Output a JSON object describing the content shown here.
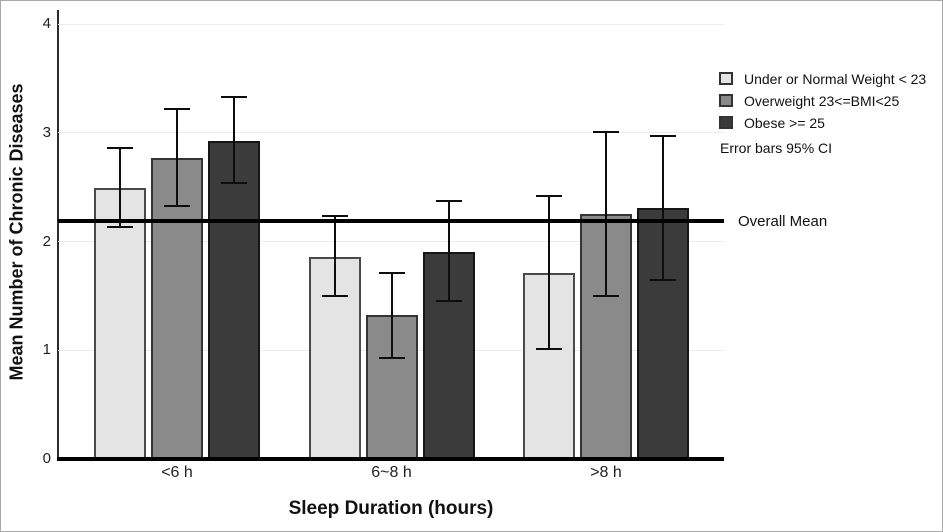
{
  "chart_data": {
    "type": "bar",
    "title": "",
    "xlabel": "Sleep Duration (hours)",
    "ylabel": "Mean Number of Chronic Diseases",
    "categories": [
      "<6 h",
      "6~8 h",
      ">8 h"
    ],
    "series": [
      {
        "name": "Under or Normal Weight < 23",
        "color": "#e4e4e4",
        "border_color": "#4a4a4a",
        "values": [
          2.49,
          1.86,
          1.71
        ],
        "ci_low": [
          2.12,
          1.49,
          1.0
        ],
        "ci_high": [
          2.87,
          2.24,
          2.43
        ]
      },
      {
        "name": "Overweight 23<=BMI<25",
        "color": "#8a8a8a",
        "border_color": "#353535",
        "values": [
          2.77,
          1.32,
          2.25
        ],
        "ci_low": [
          2.32,
          0.92,
          1.49
        ],
        "ci_high": [
          3.23,
          1.72,
          3.02
        ]
      },
      {
        "name": "Obese >= 25",
        "color": "#3b3b3b",
        "border_color": "#161616",
        "values": [
          2.92,
          1.9,
          2.31
        ],
        "ci_low": [
          2.53,
          1.44,
          1.64
        ],
        "ci_high": [
          3.34,
          2.38,
          2.98
        ]
      }
    ],
    "error_note": "Error bars 95% CI",
    "mean_line": {
      "label": "Overall Mean",
      "value": 2.19
    },
    "ylim": [
      0,
      4
    ],
    "yticks": [
      0,
      1,
      2,
      3,
      4
    ],
    "grid": true,
    "legend_position": "right-top"
  }
}
